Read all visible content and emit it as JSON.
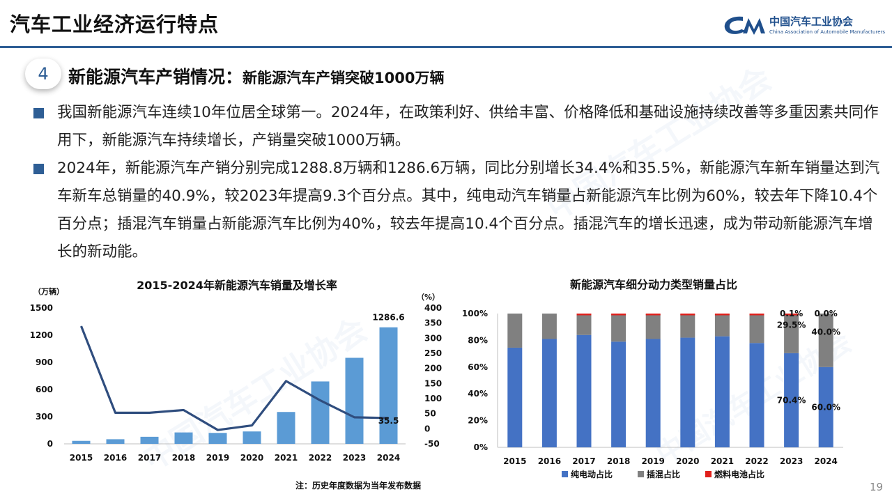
{
  "header": {
    "title": "汽车工业经济运行特点",
    "logo_mark": "CAAM",
    "logo_name": "中国汽车工业协会",
    "logo_sub": "China Association of Automobile Manufacturers"
  },
  "section": {
    "number": "4",
    "title": "新能源汽车产销情况：",
    "subtitle": "新能源汽车产销突破1000万辆"
  },
  "bullets": [
    "我国新能源汽车连续10年位居全球第一。2024年，在政策利好、供给丰富、价格降低和基础设施持续改善等多重因素共同作用下，新能源汽车持续增长，产销量突破1000万辆。",
    "2024年，新能源汽车产销分别完成1288.8万辆和1286.6万辆，同比分别增长34.4%和35.5%，新能源汽车新车销量达到汽车新车总销量的40.9%，较2023年提高9.3个百分点。其中，纯电动汽车销量占新能源汽车比例为60%，较去年下降10.4个百分点；插混汽车销量占新能源汽车比例为40%，较去年提高10.4个百分点。插混汽车的增长迅速，成为带动新能源汽车增长的新动能。"
  ],
  "note": "注：历史年度数据为当年发布数据",
  "page_number": "19",
  "colors": {
    "brand": "#2e5e95",
    "bar": "#5b9bd5",
    "line": "#2f4d7e",
    "bev": "#4472c4",
    "phev": "#808080",
    "fcev": "#e0201b"
  },
  "chart_data": [
    {
      "type": "bar",
      "title": "2015-2024年新能源汽车销量及增长率",
      "ylabel_left": "（万辆）",
      "ylabel_right": "（%）",
      "categories": [
        "2015",
        "2016",
        "2017",
        "2018",
        "2019",
        "2020",
        "2021",
        "2022",
        "2023",
        "2024"
      ],
      "yticks_left": [
        "0",
        "300",
        "600",
        "900",
        "1200",
        "1500"
      ],
      "yticks_right": [
        "-50",
        "0",
        "50",
        "100",
        "150",
        "200",
        "250",
        "300",
        "350",
        "400"
      ],
      "ylim_left": [
        0,
        1500
      ],
      "ylim_right": [
        -50,
        400
      ],
      "series": [
        {
          "kind": "bar",
          "axis": "left",
          "values": [
            33,
            51,
            78,
            126,
            121,
            137,
            352,
            689,
            950,
            1286.6
          ]
        },
        {
          "kind": "line",
          "axis": "right",
          "values": [
            340,
            53,
            53,
            62,
            -4,
            11,
            158,
            94,
            38,
            35.5
          ]
        }
      ],
      "data_labels": {
        "bar_last": "1286.6",
        "line_last": "35.5"
      },
      "grid": false,
      "legend": "none"
    },
    {
      "type": "bar",
      "stacked": true,
      "title": "新能源汽车细分动力类型销量占比",
      "categories": [
        "2015",
        "2016",
        "2017",
        "2018",
        "2019",
        "2020",
        "2021",
        "2022",
        "2023",
        "2024"
      ],
      "yticks": [
        "0%",
        "20%",
        "40%",
        "60%",
        "80%",
        "100%"
      ],
      "ylim": [
        0,
        100
      ],
      "series": [
        {
          "name": "纯电动占比",
          "values": [
            74.5,
            81,
            84,
            79,
            81,
            82,
            83,
            78,
            70.4,
            60.0
          ]
        },
        {
          "name": "插混占比",
          "values": [
            25.5,
            19,
            15.5,
            20.6,
            18.6,
            17.6,
            16.6,
            21.7,
            29.5,
            40.0
          ]
        },
        {
          "name": "燃料电池占比",
          "values": [
            0,
            0,
            0.5,
            0.4,
            0.4,
            0.4,
            0.4,
            0.3,
            0.1,
            0.0
          ]
        }
      ],
      "data_labels": {
        "2023": [
          "70.4%",
          "29.5%",
          "0.1%"
        ],
        "2024": [
          "60.0%",
          "40.0%",
          "0.0%"
        ]
      },
      "grid": false,
      "legend": "bottom"
    }
  ]
}
